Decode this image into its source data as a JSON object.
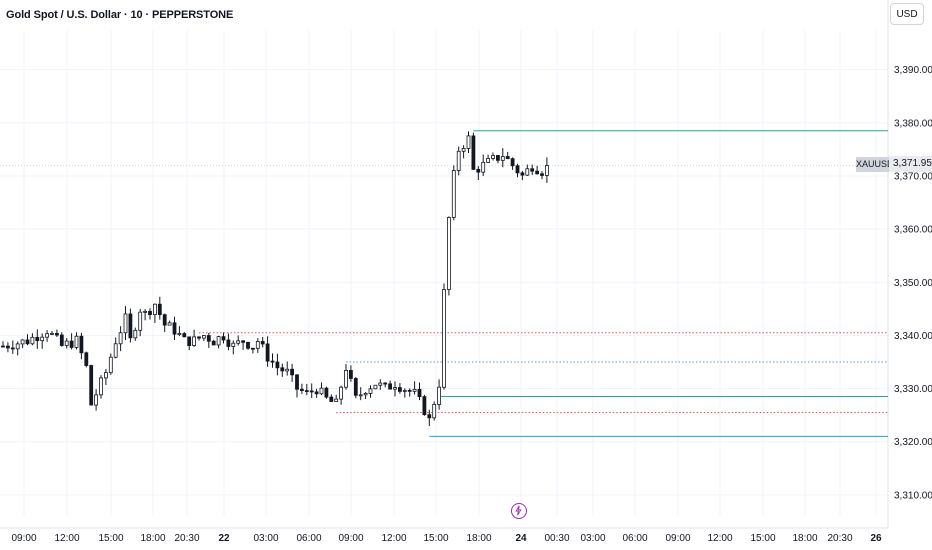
{
  "header": {
    "title": "Gold Spot / U.S. Dollar · 10 · PEPPERSTONE",
    "currency": "USD"
  },
  "price_tag": {
    "symbol": "XAUUSD",
    "value": "3,371.95"
  },
  "colors": {
    "candle": "#131722",
    "resistance_line": "#26a69a",
    "support_line": "#2196f3",
    "dotted_red": "#ef5350",
    "dotted_blue": "#5b9bd5",
    "event_marker": "#9c27b0"
  },
  "chart_data": {
    "type": "candlestick",
    "symbol": "XAUUSD",
    "interval": "10",
    "ylim": [
      3305,
      3400
    ],
    "y_ticks": [
      "3,390.00",
      "3,380.00",
      "3,370.00",
      "3,360.00",
      "3,350.00",
      "3,340.00",
      "3,330.00",
      "3,320.00",
      "3,310.00"
    ],
    "y_tick_values": [
      3390,
      3380,
      3370,
      3360,
      3350,
      3340,
      3330,
      3320,
      3310
    ],
    "x_ticks": [
      {
        "label": "09:00",
        "bold": false
      },
      {
        "label": "12:00",
        "bold": false
      },
      {
        "label": "15:00",
        "bold": false
      },
      {
        "label": "18:00",
        "bold": false
      },
      {
        "label": "20:30",
        "bold": false
      },
      {
        "label": "22",
        "bold": true
      },
      {
        "label": "03:00",
        "bold": false
      },
      {
        "label": "06:00",
        "bold": false
      },
      {
        "label": "09:00",
        "bold": false
      },
      {
        "label": "12:00",
        "bold": false
      },
      {
        "label": "15:00",
        "bold": false
      },
      {
        "label": "18:00",
        "bold": false
      },
      {
        "label": "24",
        "bold": true
      },
      {
        "label": "00:30",
        "bold": false
      },
      {
        "label": "03:00",
        "bold": false
      },
      {
        "label": "06:00",
        "bold": false
      },
      {
        "label": "09:00",
        "bold": false
      },
      {
        "label": "12:00",
        "bold": false
      },
      {
        "label": "15:00",
        "bold": false
      },
      {
        "label": "18:00",
        "bold": false
      },
      {
        "label": "20:30",
        "bold": false
      },
      {
        "label": "26",
        "bold": true
      }
    ],
    "close_path": [
      [
        0,
        3338
      ],
      [
        5,
        3339
      ],
      [
        9,
        3341
      ],
      [
        12,
        3338
      ],
      [
        15,
        3339
      ],
      [
        17,
        3334
      ],
      [
        18,
        3327
      ],
      [
        19,
        3329
      ],
      [
        21,
        3333
      ],
      [
        23,
        3339
      ],
      [
        25,
        3343
      ],
      [
        26,
        3339
      ],
      [
        28,
        3345
      ],
      [
        29,
        3344
      ],
      [
        31,
        3346
      ],
      [
        33,
        3342
      ],
      [
        35,
        3341
      ],
      [
        37,
        3339
      ],
      [
        39,
        3339
      ],
      [
        41,
        3340
      ],
      [
        43,
        3339
      ],
      [
        45,
        3340
      ],
      [
        47,
        3338
      ],
      [
        49,
        3339
      ],
      [
        51,
        3338
      ],
      [
        52,
        3339
      ],
      [
        54,
        3336
      ],
      [
        56,
        3334
      ],
      [
        58,
        3333
      ],
      [
        60,
        3330
      ],
      [
        62,
        3329
      ],
      [
        64,
        3330
      ],
      [
        66,
        3328
      ],
      [
        68,
        3327
      ],
      [
        70,
        3334
      ],
      [
        71,
        3331
      ],
      [
        72,
        3328
      ],
      [
        74,
        3330
      ],
      [
        76,
        3331
      ],
      [
        78,
        3330
      ],
      [
        80,
        3331
      ],
      [
        82,
        3330
      ],
      [
        84,
        3329
      ],
      [
        86,
        3326
      ],
      [
        87,
        3324
      ],
      [
        89,
        3331
      ],
      [
        90,
        3348
      ],
      [
        91,
        3362
      ],
      [
        92,
        3370
      ],
      [
        93,
        3375
      ],
      [
        95,
        3377
      ],
      [
        96,
        3371
      ],
      [
        98,
        3372
      ],
      [
        100,
        3373
      ],
      [
        102,
        3374
      ],
      [
        104,
        3372
      ],
      [
        106,
        3370
      ],
      [
        108,
        3372
      ],
      [
        110,
        3371
      ],
      [
        111,
        3371.95
      ]
    ],
    "levels": [
      {
        "kind": "resistance",
        "value": 3378.5,
        "style": "solid",
        "from_bar": 96
      },
      {
        "kind": "dotted_red",
        "value": 3340.5,
        "style": "dotted",
        "from_bar": 40
      },
      {
        "kind": "dotted_blue",
        "value": 3335.0,
        "style": "dotted",
        "from_bar": 70
      },
      {
        "kind": "support_upper",
        "value": 3328.5,
        "style": "solid",
        "from_bar": 89
      },
      {
        "kind": "dotted_red_low",
        "value": 3325.5,
        "style": "dotted",
        "from_bar": 68
      },
      {
        "kind": "support_lower",
        "value": 3321.0,
        "style": "solid",
        "from_bar": 87
      }
    ],
    "last_price": 3371.95,
    "grid": true
  }
}
